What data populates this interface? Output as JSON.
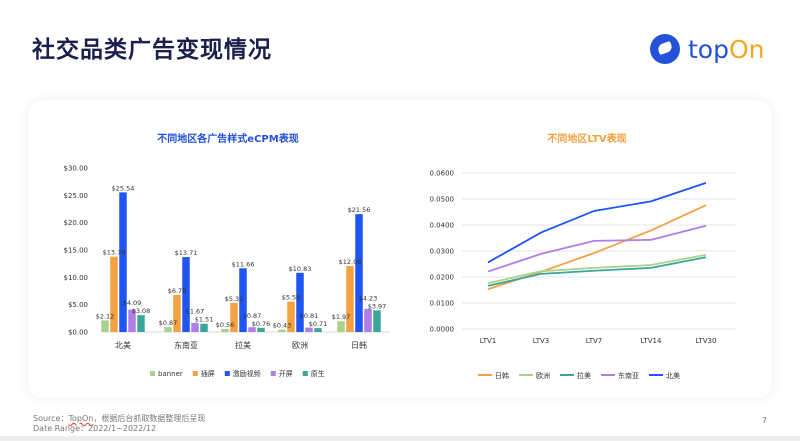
{
  "page": {
    "title": "社交品类广告变现情况",
    "logo": {
      "text_a": "top",
      "text_b": "On"
    },
    "source_label": "Source：",
    "source_brand": "TopOn",
    "source_text": "，根据后台抓取数据整理后呈现",
    "date_range": "Date Range：2022/1~2022/12",
    "page_number": "7"
  },
  "chart_data": [
    {
      "type": "bar",
      "title": "不同地区各广告样式eCPM表现",
      "title_color": "#2352d8",
      "categories": [
        "北美",
        "东南亚",
        "拉美",
        "欧洲",
        "日韩"
      ],
      "ylim": [
        0,
        30
      ],
      "yticks": [
        "$0.00",
        "$5.00",
        "$10.00",
        "$15.00",
        "$20.00",
        "$25.00",
        "$30.00"
      ],
      "legend": "bottom",
      "series": [
        {
          "name": "banner",
          "color": "#a9d18e",
          "values": [
            2.12,
            0.87,
            0.56,
            0.43,
            1.97
          ],
          "labels": [
            "$2.12",
            "$0.87",
            "$0.56",
            "$0.43",
            "$1.97"
          ]
        },
        {
          "name": "插屏",
          "color": "#f4a142",
          "values": [
            13.78,
            6.78,
            5.32,
            5.56,
            12.06
          ],
          "labels": [
            "$13.78",
            "$6.78",
            "$5.32",
            "$5.56",
            "$12.06"
          ]
        },
        {
          "name": "激励视频",
          "color": "#1f55f0",
          "values": [
            25.54,
            13.71,
            11.66,
            10.83,
            21.56
          ],
          "labels": [
            "$25.54",
            "$13.71",
            "$11.66",
            "$10.83",
            "$21.56"
          ]
        },
        {
          "name": "开屏",
          "color": "#b07ee8",
          "values": [
            4.09,
            1.67,
            0.87,
            0.81,
            4.23
          ],
          "labels": [
            "$4.09",
            "$1.67",
            "$0.87",
            "$0.81",
            "$4.23"
          ]
        },
        {
          "name": "原生",
          "color": "#3aa59b",
          "values": [
            3.08,
            1.51,
            0.76,
            0.71,
            3.97
          ],
          "labels": [
            "$3.08",
            "$1.51",
            "$0.76",
            "$0.71",
            "$3.97"
          ]
        }
      ]
    },
    {
      "type": "line",
      "title": "不同地区LTV表现",
      "title_color": "#f4a142",
      "categories": [
        "LTV1",
        "LTV3",
        "LTV7",
        "LTV14",
        "LTV30"
      ],
      "ylim": [
        0,
        0.06
      ],
      "yticks": [
        "0.0000",
        "0.0100",
        "0.0200",
        "0.0300",
        "0.0400",
        "0.0500",
        "0.0600"
      ],
      "grid": true,
      "legend": "bottom",
      "series": [
        {
          "name": "日韩",
          "color": "#f4a142",
          "values": [
            0.0153,
            0.022,
            0.0292,
            0.0379,
            0.0476
          ]
        },
        {
          "name": "欧洲",
          "color": "#a9d18e",
          "values": [
            0.0176,
            0.0222,
            0.0235,
            0.0246,
            0.0285
          ]
        },
        {
          "name": "拉美",
          "color": "#3aa59b",
          "values": [
            0.0166,
            0.0212,
            0.0224,
            0.0235,
            0.0276
          ]
        },
        {
          "name": "东南亚",
          "color": "#b07ee8",
          "values": [
            0.0221,
            0.0289,
            0.0339,
            0.0343,
            0.0397
          ]
        },
        {
          "name": "北美",
          "color": "#1f55f0",
          "values": [
            0.0256,
            0.0371,
            0.0454,
            0.0491,
            0.0562
          ]
        }
      ]
    }
  ]
}
